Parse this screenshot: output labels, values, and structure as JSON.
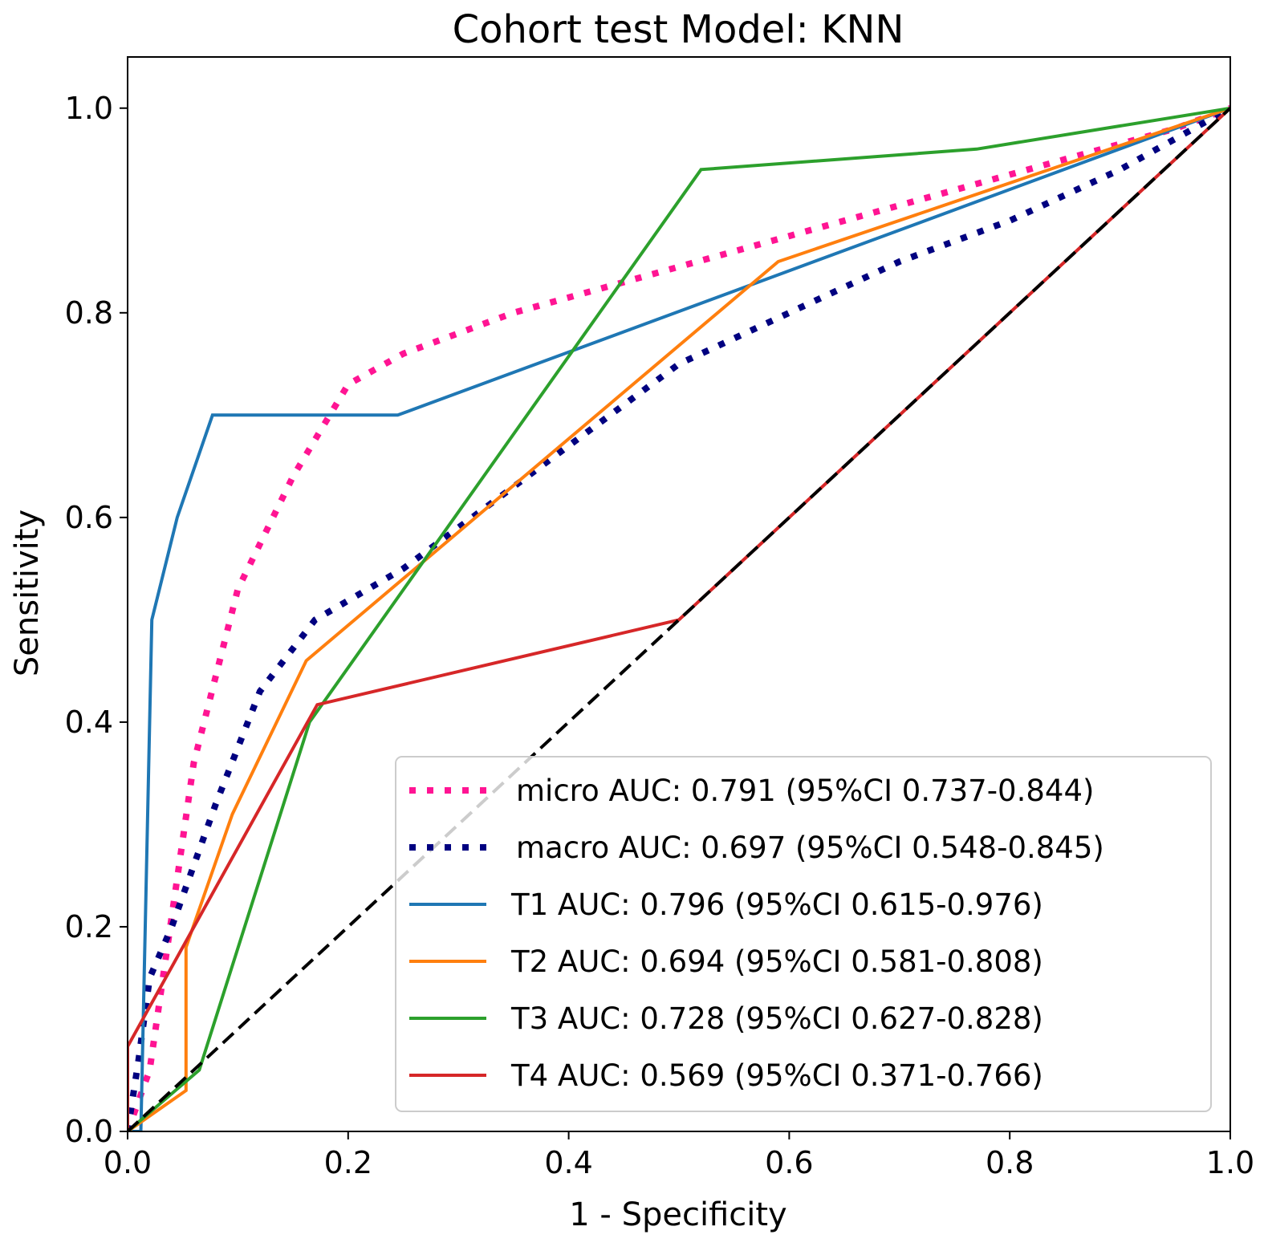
{
  "chart_data": {
    "type": "line",
    "title": "Cohort test Model: KNN",
    "xlabel": "1 - Specificity",
    "ylabel": "Sensitivity",
    "xlim": [
      0.0,
      1.0
    ],
    "ylim": [
      0.0,
      1.05
    ],
    "xticks": [
      0.0,
      0.2,
      0.4,
      0.6,
      0.8,
      1.0
    ],
    "xtick_labels": [
      "0.0",
      "0.2",
      "0.4",
      "0.6",
      "0.8",
      "1.0"
    ],
    "yticks": [
      0.0,
      0.2,
      0.4,
      0.6,
      0.8,
      1.0
    ],
    "ytick_labels": [
      "0.0",
      "0.2",
      "0.4",
      "0.6",
      "0.8",
      "1.0"
    ],
    "grid": false,
    "legend_position": "lower-right",
    "series": [
      {
        "id": "micro",
        "name": "micro AUC: 0.791 (95%CI 0.737-0.844)",
        "color": "#ff1493",
        "style": "dotted",
        "x": [
          0.0,
          0.02,
          0.04,
          0.06,
          0.1,
          0.15,
          0.2,
          0.25,
          0.35,
          0.45,
          0.55,
          0.65,
          0.75,
          0.85,
          0.95,
          1.0
        ],
        "y": [
          0.0,
          0.06,
          0.21,
          0.36,
          0.53,
          0.64,
          0.73,
          0.76,
          0.8,
          0.83,
          0.86,
          0.89,
          0.92,
          0.95,
          0.98,
          1.0
        ]
      },
      {
        "id": "macro",
        "name": "macro AUC: 0.697 (95%CI 0.548-0.845)",
        "color": "#000080",
        "style": "dotted",
        "x": [
          0.0,
          0.01,
          0.02,
          0.04,
          0.08,
          0.12,
          0.17,
          0.25,
          0.35,
          0.5,
          0.6,
          0.7,
          0.8,
          0.9,
          1.0
        ],
        "y": [
          0.0,
          0.07,
          0.15,
          0.2,
          0.32,
          0.43,
          0.5,
          0.55,
          0.63,
          0.75,
          0.8,
          0.85,
          0.89,
          0.94,
          1.0
        ]
      },
      {
        "id": "t1",
        "name": "T1 AUC: 0.796 (95%CI 0.615-0.976)",
        "color": "#1f77b4",
        "style": "solid",
        "x": [
          0.0,
          0.012,
          0.022,
          0.045,
          0.077,
          0.245,
          1.0
        ],
        "y": [
          0.0,
          0.0,
          0.5,
          0.6,
          0.7,
          0.7,
          1.0
        ]
      },
      {
        "id": "t2",
        "name": "T2 AUC: 0.694 (95%CI 0.581-0.808)",
        "color": "#ff7f0e",
        "style": "solid",
        "x": [
          0.0,
          0.053,
          0.053,
          0.095,
          0.162,
          0.59,
          1.0
        ],
        "y": [
          0.0,
          0.04,
          0.18,
          0.31,
          0.46,
          0.85,
          1.0
        ]
      },
      {
        "id": "t3",
        "name": "T3 AUC: 0.728 (95%CI 0.627-0.828)",
        "color": "#2ca02c",
        "style": "solid",
        "x": [
          0.0,
          0.065,
          0.165,
          0.52,
          0.77,
          1.0
        ],
        "y": [
          0.0,
          0.06,
          0.4,
          0.94,
          0.96,
          1.0
        ]
      },
      {
        "id": "t4",
        "name": "T4 AUC: 0.569 (95%CI 0.371-0.766)",
        "color": "#d62728",
        "style": "solid",
        "x": [
          0.0,
          0.0,
          0.172,
          0.5,
          1.0
        ],
        "y": [
          0.0,
          0.083,
          0.417,
          0.5,
          1.0
        ]
      },
      {
        "id": "chance",
        "name": "",
        "color": "#000000",
        "style": "dashed",
        "x": [
          0.0,
          1.0
        ],
        "y": [
          0.0,
          1.0
        ]
      }
    ],
    "legend_order": [
      "micro",
      "macro",
      "t1",
      "t2",
      "t3",
      "t4"
    ]
  }
}
